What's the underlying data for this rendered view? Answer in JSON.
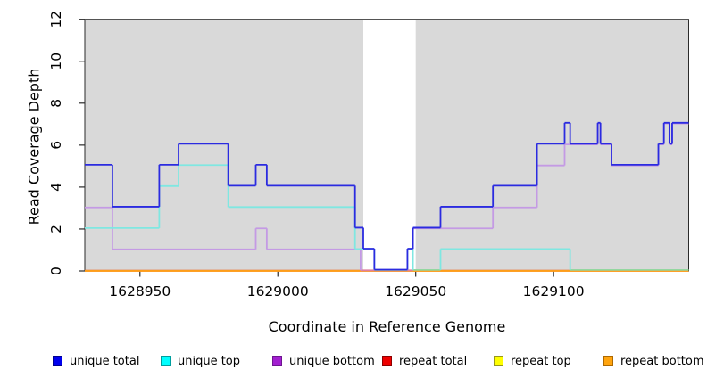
{
  "chart_data": {
    "type": "line",
    "subtype": "step-coverage",
    "title": "",
    "xlabel": "Coordinate in Reference Genome",
    "ylabel": "Read Coverage Depth",
    "xlim": [
      1628930,
      1629149
    ],
    "ylim": [
      0,
      12
    ],
    "x_ticks": [
      1628950,
      1629000,
      1629050,
      1629100
    ],
    "y_ticks": [
      0,
      2,
      4,
      6,
      8,
      10,
      12
    ],
    "grid": false,
    "plot_background": "#d9d9d9",
    "gap_band": {
      "from": 1629031,
      "to": 1629050,
      "color": "#ffffff"
    },
    "box_color": "#2a2a2a",
    "text_color": "#000000",
    "series": [
      {
        "name": "repeat total",
        "line_color": "#e82222",
        "legend_fill": "#ee0000",
        "legend_border": "#8e0000",
        "points": [
          [
            1628930,
            0
          ]
        ]
      },
      {
        "name": "repeat top",
        "line_color": "#f0e643",
        "legend_fill": "#ffff00",
        "legend_border": "#97971c",
        "points": [
          [
            1628930,
            0
          ]
        ]
      },
      {
        "name": "repeat bottom",
        "line_color": "#ff9414",
        "legend_fill": "#ffa40e",
        "legend_border": "#ad6800",
        "points": [
          [
            1628930,
            0
          ]
        ]
      },
      {
        "name": "unique bottom",
        "line_color": "#c49ae4",
        "legend_fill": "#a21fd0",
        "legend_border": "#6e1590",
        "zero_overlap_color": "#dd7f9f",
        "points": [
          [
            1628930,
            3
          ],
          [
            1628940,
            1
          ],
          [
            1628992,
            2
          ],
          [
            1628996,
            1
          ],
          [
            1629030,
            0
          ],
          [
            1629049,
            2
          ],
          [
            1629078,
            3
          ],
          [
            1629094,
            5
          ],
          [
            1629104,
            6
          ],
          [
            1629116,
            7
          ],
          [
            1629117,
            6
          ],
          [
            1629121,
            5
          ],
          [
            1629138,
            6
          ],
          [
            1629140,
            7
          ],
          [
            1629142,
            6
          ],
          [
            1629143,
            7
          ]
        ]
      },
      {
        "name": "unique top",
        "line_color": "#7fe7e1",
        "legend_fill": "#00ffff",
        "legend_border": "#009e9e",
        "zero_overlap_color": "#93d7a0",
        "points": [
          [
            1628930,
            2
          ],
          [
            1628957,
            4
          ],
          [
            1628964,
            5
          ],
          [
            1628982,
            3
          ],
          [
            1629028,
            1
          ],
          [
            1629035,
            0
          ],
          [
            1629047,
            1
          ],
          [
            1629049,
            0
          ],
          [
            1629059,
            1
          ],
          [
            1629106,
            0
          ]
        ]
      },
      {
        "name": "unique total",
        "line_color": "#2b2be0",
        "legend_fill": "#0000ee",
        "legend_border": "#000090",
        "points": [
          [
            1628930,
            5
          ],
          [
            1628940,
            3
          ],
          [
            1628957,
            5
          ],
          [
            1628964,
            6
          ],
          [
            1628982,
            4
          ],
          [
            1628992,
            5
          ],
          [
            1628996,
            4
          ],
          [
            1629028,
            2
          ],
          [
            1629031,
            1
          ],
          [
            1629035,
            0
          ],
          [
            1629047,
            1
          ],
          [
            1629049,
            2
          ],
          [
            1629059,
            3
          ],
          [
            1629078,
            4
          ],
          [
            1629094,
            6
          ],
          [
            1629104,
            7
          ],
          [
            1629106,
            6
          ],
          [
            1629116,
            7
          ],
          [
            1629117,
            6
          ],
          [
            1629121,
            5
          ],
          [
            1629138,
            6
          ],
          [
            1629140,
            7
          ],
          [
            1629142,
            6
          ],
          [
            1629143,
            7
          ]
        ]
      }
    ],
    "legend_order": [
      "unique total",
      "unique top",
      "unique bottom",
      "repeat total",
      "repeat top",
      "repeat bottom"
    ]
  }
}
